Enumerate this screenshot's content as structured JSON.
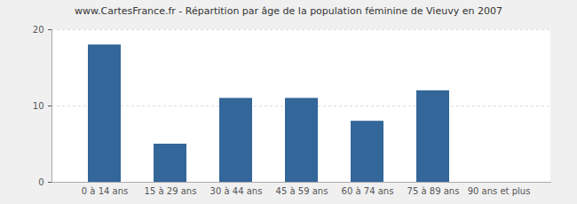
{
  "chart_data": {
    "type": "bar",
    "title": "www.CartesFrance.fr - Répartition par âge de la population féminine de Vieuvy en 2007",
    "categories": [
      "0 à 14 ans",
      "15 à 29 ans",
      "30 à 44 ans",
      "45 à 59 ans",
      "60 à 74 ans",
      "75 à 89 ans",
      "90 ans et plus"
    ],
    "values": [
      18,
      5,
      11,
      11,
      8,
      12,
      0
    ],
    "color": "#336699",
    "ylim": [
      0,
      20
    ],
    "yticks": [
      0,
      10,
      20
    ],
    "grid": true
  }
}
